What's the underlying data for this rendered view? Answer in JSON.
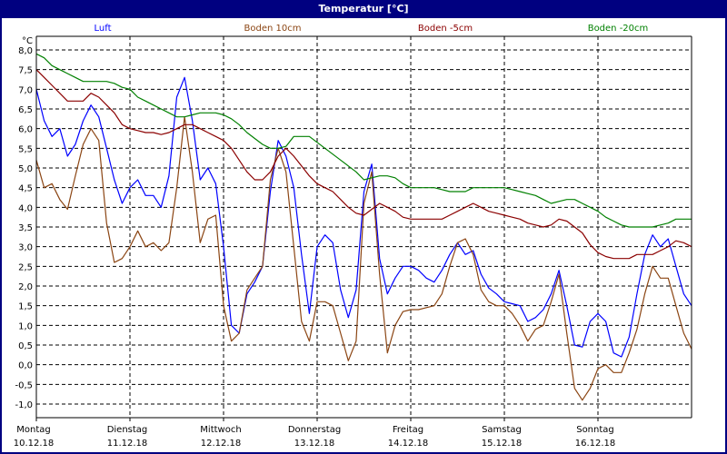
{
  "window": {
    "title": "Temperatur [°C]"
  },
  "chart_data": {
    "type": "line",
    "title": "Temperatur [°C]",
    "ylabel": "°C",
    "ylim": [
      -1.0,
      8.0
    ],
    "y_ticks": [
      "8,0",
      "7,5",
      "7,0",
      "6,5",
      "6,0",
      "5,5",
      "5,0",
      "4,5",
      "4,0",
      "3,5",
      "3,0",
      "2,5",
      "2,0",
      "1,5",
      "1,0",
      "0,5",
      "0,0",
      "-0,5",
      "-1,0"
    ],
    "y_tick_values": [
      8,
      7.5,
      7,
      6.5,
      6,
      5.5,
      5,
      4.5,
      4,
      3.5,
      3,
      2.5,
      2,
      1.5,
      1,
      0.5,
      0,
      -0.5,
      -1
    ],
    "x_ticks": [
      {
        "day": "Montag",
        "date": "10.12.18"
      },
      {
        "day": "Dienstag",
        "date": "11.12.18"
      },
      {
        "day": "Mittwoch",
        "date": "12.12.18"
      },
      {
        "day": "Donnerstag",
        "date": "13.12.18"
      },
      {
        "day": "Freitag",
        "date": "14.12.18"
      },
      {
        "day": "Samstag",
        "date": "15.12.18"
      },
      {
        "day": "Sonntag",
        "date": "16.12.18"
      }
    ],
    "x_range_hours": [
      0,
      168
    ],
    "interval_hours": 2,
    "grid": true,
    "legend_placement": "top",
    "series": [
      {
        "name": "Luft",
        "color": "#0000ff",
        "values": [
          7.0,
          6.2,
          5.8,
          6.0,
          5.3,
          5.6,
          6.2,
          6.6,
          6.3,
          5.5,
          4.7,
          4.1,
          4.5,
          4.7,
          4.3,
          4.3,
          4.0,
          4.8,
          6.8,
          7.3,
          6.2,
          4.7,
          5.0,
          4.6,
          3.0,
          1.0,
          0.8,
          1.8,
          2.1,
          2.5,
          4.4,
          5.7,
          5.3,
          4.5,
          2.8,
          1.3,
          3.0,
          3.3,
          3.1,
          1.9,
          1.2,
          1.9,
          4.4,
          5.1,
          2.7,
          1.8,
          2.2,
          2.5,
          2.5,
          2.4,
          2.2,
          2.1,
          2.4,
          2.8,
          3.1,
          2.8,
          2.9,
          2.3,
          1.95,
          1.8,
          1.6,
          1.55,
          1.5,
          1.1,
          1.2,
          1.4,
          1.8,
          2.4,
          1.5,
          0.5,
          0.45,
          1.1,
          1.3,
          1.1,
          0.3,
          0.2,
          0.7,
          1.8,
          2.8,
          3.3,
          3.0,
          3.2,
          2.5,
          1.8,
          1.5
        ]
      },
      {
        "name": "Boden 10cm",
        "color": "#8b4513",
        "values": [
          5.2,
          4.5,
          4.6,
          4.2,
          3.95,
          4.8,
          5.6,
          6.0,
          5.7,
          3.6,
          2.6,
          2.7,
          3.0,
          3.4,
          3.0,
          3.1,
          2.9,
          3.1,
          4.5,
          6.3,
          4.9,
          3.1,
          3.7,
          3.8,
          1.5,
          0.6,
          0.8,
          1.9,
          2.2,
          2.5,
          4.7,
          5.5,
          4.9,
          3.0,
          1.1,
          0.6,
          1.6,
          1.6,
          1.5,
          0.8,
          0.1,
          0.6,
          4.1,
          4.9,
          2.3,
          0.3,
          1.0,
          1.35,
          1.4,
          1.4,
          1.45,
          1.5,
          1.8,
          2.5,
          3.1,
          3.2,
          2.8,
          1.9,
          1.6,
          1.5,
          1.5,
          1.3,
          1.0,
          0.6,
          0.9,
          1.0,
          1.6,
          2.3,
          0.8,
          -0.6,
          -0.9,
          -0.6,
          -0.1,
          0.0,
          -0.2,
          -0.2,
          0.3,
          0.9,
          1.8,
          2.5,
          2.2,
          2.2,
          1.5,
          0.8,
          0.4
        ]
      },
      {
        "name": "Boden -5cm",
        "color": "#8b0000",
        "values": [
          7.5,
          7.3,
          7.1,
          6.9,
          6.7,
          6.7,
          6.7,
          6.9,
          6.8,
          6.6,
          6.4,
          6.1,
          6.0,
          5.95,
          5.9,
          5.9,
          5.85,
          5.9,
          6.0,
          6.1,
          6.1,
          6.0,
          5.9,
          5.8,
          5.7,
          5.5,
          5.2,
          4.9,
          4.7,
          4.7,
          4.9,
          5.3,
          5.5,
          5.3,
          5.05,
          4.8,
          4.6,
          4.5,
          4.4,
          4.2,
          4.0,
          3.85,
          3.8,
          3.95,
          4.1,
          4.0,
          3.9,
          3.75,
          3.7,
          3.7,
          3.7,
          3.7,
          3.7,
          3.8,
          3.9,
          4.0,
          4.1,
          4.0,
          3.9,
          3.85,
          3.8,
          3.75,
          3.7,
          3.6,
          3.55,
          3.5,
          3.55,
          3.7,
          3.65,
          3.5,
          3.35,
          3.05,
          2.85,
          2.75,
          2.7,
          2.7,
          2.7,
          2.8,
          2.8,
          2.8,
          2.9,
          3.0,
          3.15,
          3.1,
          3.0
        ]
      },
      {
        "name": "Boden -20cm",
        "color": "#008000",
        "values": [
          7.9,
          7.8,
          7.6,
          7.5,
          7.4,
          7.3,
          7.2,
          7.2,
          7.2,
          7.2,
          7.15,
          7.05,
          7.0,
          6.8,
          6.7,
          6.6,
          6.5,
          6.4,
          6.3,
          6.3,
          6.35,
          6.4,
          6.4,
          6.4,
          6.35,
          6.25,
          6.1,
          5.9,
          5.75,
          5.6,
          5.5,
          5.5,
          5.55,
          5.8,
          5.8,
          5.8,
          5.65,
          5.5,
          5.35,
          5.2,
          5.05,
          4.9,
          4.7,
          4.75,
          4.8,
          4.8,
          4.75,
          4.6,
          4.5,
          4.5,
          4.5,
          4.5,
          4.45,
          4.4,
          4.4,
          4.4,
          4.5,
          4.5,
          4.5,
          4.5,
          4.5,
          4.45,
          4.4,
          4.35,
          4.3,
          4.2,
          4.1,
          4.15,
          4.2,
          4.2,
          4.1,
          4.0,
          3.9,
          3.75,
          3.65,
          3.55,
          3.5,
          3.5,
          3.5,
          3.5,
          3.55,
          3.6,
          3.7,
          3.7,
          3.7
        ]
      }
    ]
  }
}
